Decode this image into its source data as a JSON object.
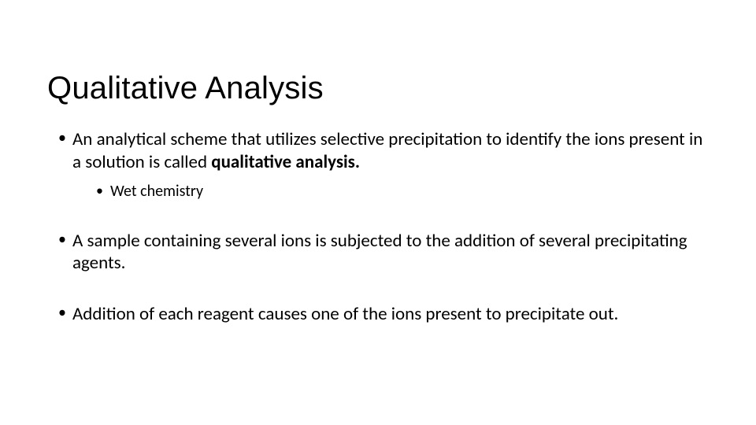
{
  "slide": {
    "title": "Qualitative Analysis",
    "bullets": [
      {
        "pre": "An analytical scheme that utilizes selective precipitation to identify the ions present in a solution is called ",
        "bold": "qualitative analysis.",
        "sub": [
          "Wet chemistry"
        ]
      },
      {
        "pre": "A sample containing several ions is subjected to the addition of several precipitating agents.",
        "bold": "",
        "sub": []
      },
      {
        "pre": "Addition of each reagent causes one of the ions present to precipitate out.",
        "bold": "",
        "sub": []
      }
    ],
    "style": {
      "background_color": "#ffffff",
      "text_color": "#000000",
      "title_fontsize": 40,
      "body_fontsize": 23,
      "sub_fontsize": 20,
      "title_fontfamily": "Arial",
      "body_fontfamily": "Calibri"
    }
  }
}
